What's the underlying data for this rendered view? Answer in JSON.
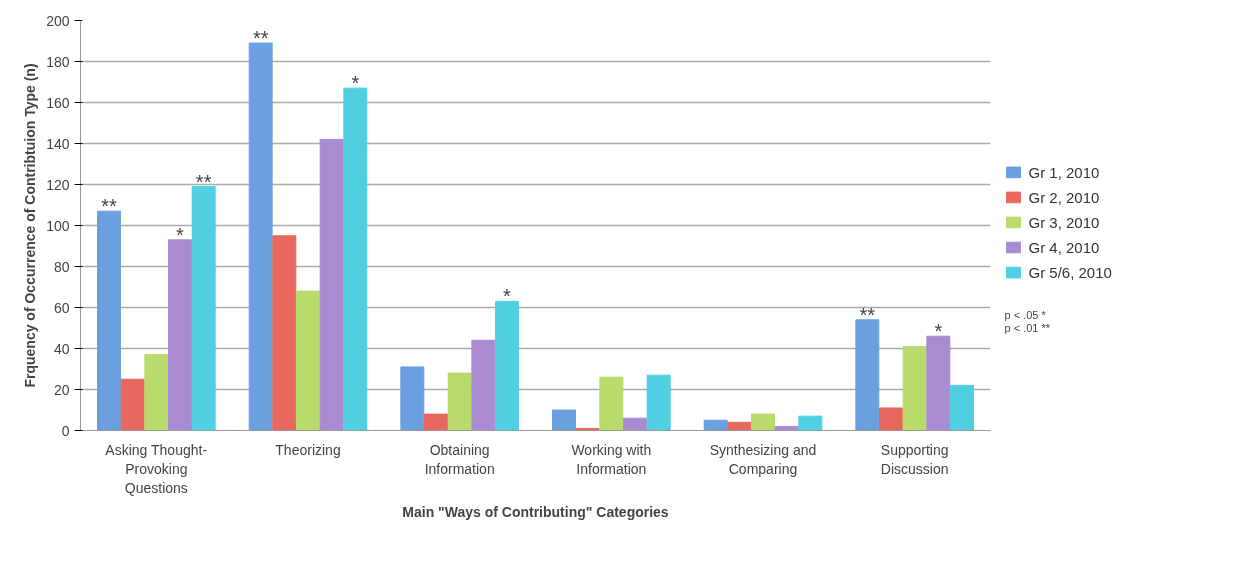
{
  "chart_data": {
    "type": "bar",
    "xlabel": "Main \"Ways of Contributing\" Categories",
    "ylabel": "Frquency of Occurrence of Contribtuion Type (n)",
    "categories": [
      "Asking Thought-Provoking Questions",
      "Theorizing",
      "Obtaining Information",
      "Working with Information",
      "Synthesizing and Comparing",
      "Supporting Discussion"
    ],
    "series": [
      {
        "name": "Gr 1, 2010",
        "color": "#6a9fe0",
        "values": [
          107,
          189,
          31,
          10,
          5,
          54
        ],
        "value_labels": [
          "**",
          "**",
          null,
          null,
          null,
          "**"
        ]
      },
      {
        "name": "Gr 2, 2010",
        "color": "#e8675f",
        "values": [
          25,
          95,
          8,
          1,
          4,
          11
        ]
      },
      {
        "name": "Gr 3, 2010",
        "color": "#b8db6c",
        "values": [
          37,
          68,
          28,
          26,
          8,
          41
        ]
      },
      {
        "name": "Gr 4, 2010",
        "color": "#a98bd4",
        "values": [
          93,
          142,
          44,
          6,
          2,
          46
        ],
        "value_labels": [
          "*",
          null,
          null,
          null,
          null,
          "*"
        ]
      },
      {
        "name": "Gr 5/6, 2010",
        "color": "#4fcfe2",
        "values": [
          119,
          167,
          63,
          27,
          7,
          22
        ],
        "value_labels": [
          "**",
          "*",
          "*",
          null,
          null,
          null
        ]
      }
    ],
    "ylim": [
      0,
      200
    ],
    "yticks": [
      0,
      20,
      40,
      60,
      80,
      100,
      120,
      140,
      160,
      180,
      200
    ],
    "grid": "y",
    "legend": "right",
    "annotations": [
      "p < .05 *",
      "p < .01 **"
    ]
  }
}
